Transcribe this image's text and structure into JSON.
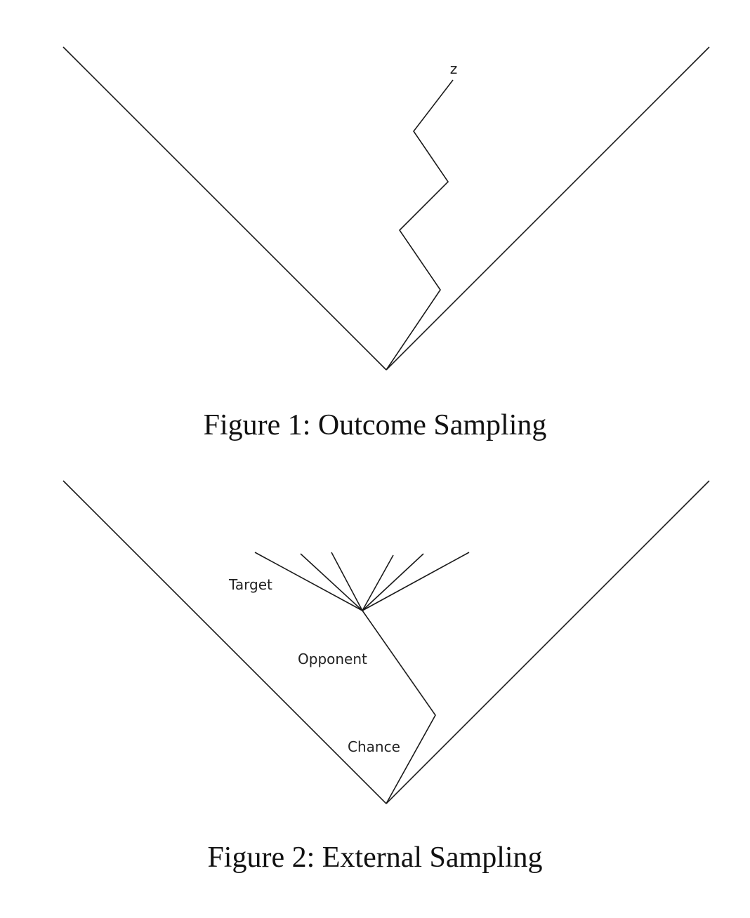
{
  "figure1": {
    "caption": "Figure 1: Outcome Sampling",
    "terminal_label": "z"
  },
  "figure2": {
    "caption": "Figure 2: External Sampling",
    "labels": {
      "target": "Target",
      "opponent": "Opponent",
      "chance": "Chance"
    },
    "target_branch_count": 6
  }
}
